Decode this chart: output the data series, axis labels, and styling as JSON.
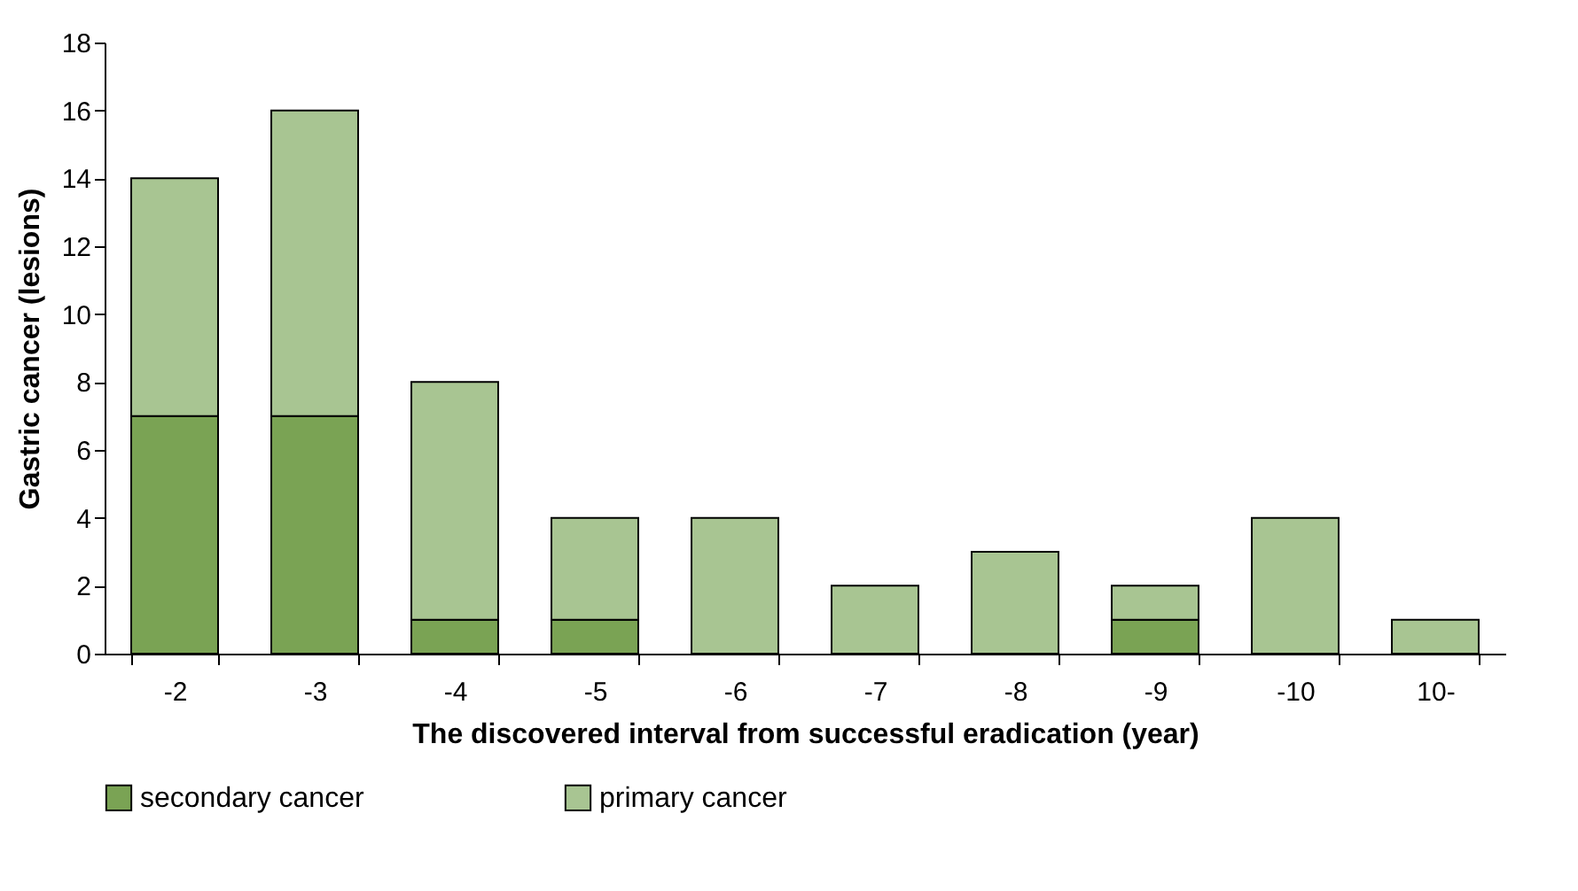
{
  "chart_data": {
    "type": "bar",
    "stacked": true,
    "xlabel": "The discovered interval from successful eradication (year)",
    "ylabel": "Gastric cancer (lesions)",
    "categories": [
      "-2",
      "-3",
      "-4",
      "-5",
      "-6",
      "-7",
      "-8",
      "-9",
      "-10",
      "10-"
    ],
    "series": [
      {
        "name": "secondary cancer",
        "color": "#7aa354",
        "values": [
          7,
          7,
          1,
          1,
          0,
          0,
          0,
          1,
          0,
          0
        ]
      },
      {
        "name": "primary cancer",
        "color": "#a8c592",
        "values": [
          7,
          9,
          7,
          3,
          4,
          2,
          3,
          1,
          4,
          1
        ]
      }
    ],
    "ylim": [
      0,
      18
    ],
    "yticks": [
      0,
      2,
      4,
      6,
      8,
      10,
      12,
      14,
      16,
      18
    ],
    "grid": false,
    "legend": "bottom"
  }
}
